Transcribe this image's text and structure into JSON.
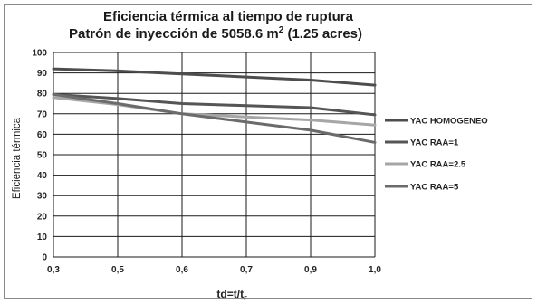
{
  "chart_data": {
    "type": "line",
    "title_line1": "Eficiencia térmica al tiempo de ruptura",
    "title_line2_pre": "Patrón de inyección de 5058.6 m",
    "title_line2_sup": "2",
    "title_line2_post": " (1.25 acres)",
    "ylabel": "Eficiencia térmica",
    "xlabel_main": "td=t/t",
    "xlabel_sub": "r",
    "categories": [
      "0,3",
      "0,5",
      "0,6",
      "0,7",
      "0,9",
      "1,0"
    ],
    "y_ticks": [
      "0",
      "10",
      "20",
      "30",
      "40",
      "50",
      "60",
      "70",
      "80",
      "90",
      "100"
    ],
    "ylim": [
      0,
      100
    ],
    "grid": true,
    "legend_position": "right",
    "series": [
      {
        "name": "YAC HOMOGENEO",
        "color": "#4d4d4d",
        "values": [
          92,
          91,
          89.5,
          88,
          86.5,
          84
        ]
      },
      {
        "name": "YAC RAA=1",
        "color": "#555555",
        "values": [
          79.5,
          77.5,
          75,
          74,
          73,
          69.5
        ]
      },
      {
        "name": "YAC RAA=2.5",
        "color": "#a6a6a6",
        "values": [
          78,
          74.5,
          70,
          68.5,
          67,
          64.5
        ]
      },
      {
        "name": "YAC RAA=5",
        "color": "#6b6b6b",
        "values": [
          79.5,
          75,
          70,
          66,
          62,
          56
        ]
      }
    ]
  }
}
